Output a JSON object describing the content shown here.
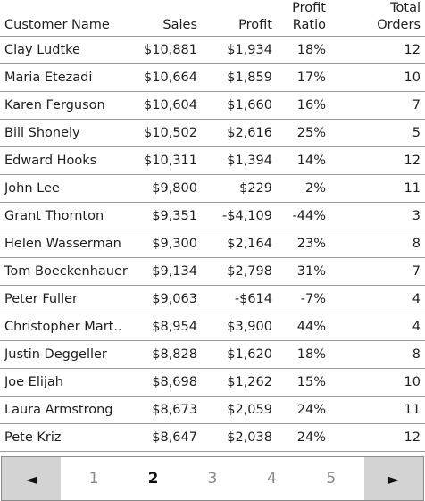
{
  "table": {
    "headers": {
      "customer_name": "Customer Name",
      "sales": "Sales",
      "profit": "Profit",
      "profit_ratio_line1": "Profit",
      "profit_ratio_line2": "Ratio",
      "total_orders_line1": "Total",
      "total_orders_line2": "Orders"
    },
    "rows": [
      {
        "name": "Clay Ludtke",
        "sales": "$10,881",
        "profit": "$1,934",
        "ratio": "18%",
        "orders": "12"
      },
      {
        "name": "Maria Etezadi",
        "sales": "$10,664",
        "profit": "$1,859",
        "ratio": "17%",
        "orders": "10"
      },
      {
        "name": "Karen Ferguson",
        "sales": "$10,604",
        "profit": "$1,660",
        "ratio": "16%",
        "orders": "7"
      },
      {
        "name": "Bill Shonely",
        "sales": "$10,502",
        "profit": "$2,616",
        "ratio": "25%",
        "orders": "5"
      },
      {
        "name": "Edward Hooks",
        "sales": "$10,311",
        "profit": "$1,394",
        "ratio": "14%",
        "orders": "12"
      },
      {
        "name": "John Lee",
        "sales": "$9,800",
        "profit": "$229",
        "ratio": "2%",
        "orders": "11"
      },
      {
        "name": "Grant Thornton",
        "sales": "$9,351",
        "profit": "-$4,109",
        "ratio": "-44%",
        "orders": "3"
      },
      {
        "name": "Helen Wasserman",
        "sales": "$9,300",
        "profit": "$2,164",
        "ratio": "23%",
        "orders": "8"
      },
      {
        "name": "Tom Boeckenhauer",
        "sales": "$9,134",
        "profit": "$2,798",
        "ratio": "31%",
        "orders": "7"
      },
      {
        "name": "Peter Fuller",
        "sales": "$9,063",
        "profit": "-$614",
        "ratio": "-7%",
        "orders": "4"
      },
      {
        "name": "Christopher Mart..",
        "sales": "$8,954",
        "profit": "$3,900",
        "ratio": "44%",
        "orders": "4"
      },
      {
        "name": "Justin Deggeller",
        "sales": "$8,828",
        "profit": "$1,620",
        "ratio": "18%",
        "orders": "8"
      },
      {
        "name": "Joe Elijah",
        "sales": "$8,698",
        "profit": "$1,262",
        "ratio": "15%",
        "orders": "10"
      },
      {
        "name": "Laura Armstrong",
        "sales": "$8,673",
        "profit": "$2,059",
        "ratio": "24%",
        "orders": "11"
      },
      {
        "name": "Pete Kriz",
        "sales": "$8,647",
        "profit": "$2,038",
        "ratio": "24%",
        "orders": "12"
      }
    ]
  },
  "pagination": {
    "prev_symbol": "◄",
    "next_symbol": "►",
    "prev_icon": "triangle-left-icon",
    "next_icon": "triangle-right-icon",
    "pages": [
      "1",
      "2",
      "3",
      "4",
      "5"
    ],
    "current_page": "2"
  }
}
